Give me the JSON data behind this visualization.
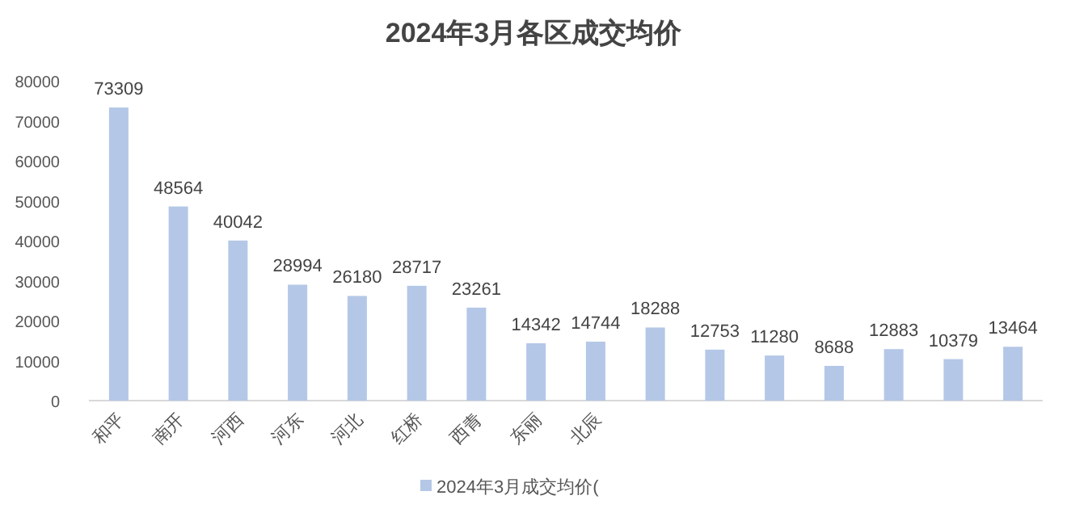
{
  "chart_data": {
    "type": "bar",
    "title": "2024年3月各区成交均价",
    "categories": [
      "和平",
      "南开",
      "河西",
      "河东",
      "河北",
      "红桥",
      "西青",
      "东丽",
      "北辰",
      null,
      null,
      null,
      null,
      null,
      null,
      null
    ],
    "series": [
      {
        "name": "2024年3月成交均价(",
        "color": "#b4c7e7",
        "values": [
          73309,
          48564,
          40042,
          28994,
          26180,
          28717,
          23261,
          14342,
          14744,
          18288,
          12753,
          11280,
          8688,
          12883,
          10379,
          13464
        ]
      }
    ],
    "ylim": [
      0,
      80000
    ],
    "yticks": [
      0,
      10000,
      20000,
      30000,
      40000,
      50000,
      60000,
      70000,
      80000
    ],
    "data_labels": true,
    "legend": "bottom",
    "grid": false
  }
}
